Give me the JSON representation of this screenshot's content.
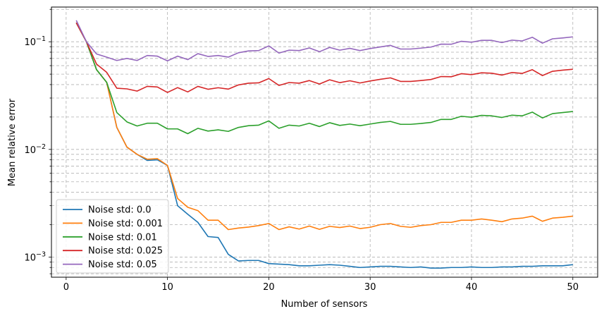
{
  "chart_data": {
    "type": "line",
    "title": "",
    "xlabel": "Number of sensors",
    "ylabel": "Mean relative error",
    "yscale": "log",
    "xlim": [
      -1.45,
      52.45
    ],
    "ylim": [
      0.00065,
      0.21
    ],
    "grid": true,
    "legend_position": "lower-left",
    "x_ticks": [
      0,
      10,
      20,
      30,
      40,
      50
    ],
    "x_tick_labels": [
      "0",
      "10",
      "20",
      "30",
      "40",
      "50"
    ],
    "y_ticks": [
      0.001,
      0.01,
      0.1
    ],
    "y_tick_labels": [
      "10^-3",
      "10^-2",
      "10^-1"
    ],
    "x": [
      1,
      2,
      3,
      4,
      5,
      6,
      7,
      8,
      9,
      10,
      11,
      12,
      13,
      14,
      15,
      16,
      17,
      18,
      19,
      20,
      21,
      22,
      23,
      24,
      25,
      26,
      27,
      28,
      29,
      30,
      31,
      32,
      33,
      34,
      35,
      36,
      37,
      38,
      39,
      40,
      41,
      42,
      43,
      44,
      45,
      46,
      47,
      48,
      49,
      50
    ],
    "series": [
      {
        "name": "Noise std: 0.0",
        "color": "#1f77b4",
        "values": [
          0.15,
          0.1,
          0.055,
          0.042,
          0.016,
          0.0105,
          0.009,
          0.0079,
          0.008,
          0.0071,
          0.003,
          0.0025,
          0.0021,
          0.00155,
          0.00152,
          0.00106,
          0.00092,
          0.00093,
          0.00093,
          0.00087,
          0.00086,
          0.00085,
          0.00083,
          0.00083,
          0.00084,
          0.00085,
          0.00084,
          0.00082,
          0.0008,
          0.00081,
          0.00082,
          0.00082,
          0.00081,
          0.0008,
          0.00081,
          0.00079,
          0.00079,
          0.0008,
          0.0008,
          0.00081,
          0.0008,
          0.0008,
          0.00081,
          0.00081,
          0.00082,
          0.00082,
          0.00083,
          0.00083,
          0.00083,
          0.00085
        ]
      },
      {
        "name": "Noise std: 0.001",
        "color": "#ff7f0e",
        "values": [
          0.15,
          0.1,
          0.055,
          0.042,
          0.016,
          0.0105,
          0.009,
          0.0081,
          0.0082,
          0.0071,
          0.0035,
          0.0029,
          0.0027,
          0.0022,
          0.0022,
          0.0018,
          0.00186,
          0.0019,
          0.00196,
          0.00205,
          0.0018,
          0.00191,
          0.00182,
          0.00194,
          0.00181,
          0.00193,
          0.00188,
          0.00194,
          0.00184,
          0.00189,
          0.002,
          0.00205,
          0.00193,
          0.00189,
          0.00196,
          0.002,
          0.0021,
          0.0021,
          0.0022,
          0.0022,
          0.00226,
          0.0022,
          0.00213,
          0.00226,
          0.0023,
          0.0024,
          0.00215,
          0.0023,
          0.00234,
          0.0024
        ]
      },
      {
        "name": "Noise std: 0.01",
        "color": "#2ca02c",
        "values": [
          0.15,
          0.1,
          0.055,
          0.042,
          0.022,
          0.018,
          0.0165,
          0.0175,
          0.0175,
          0.0155,
          0.0155,
          0.014,
          0.0157,
          0.0148,
          0.0152,
          0.0147,
          0.016,
          0.0166,
          0.0168,
          0.0184,
          0.0157,
          0.0168,
          0.0165,
          0.0175,
          0.0163,
          0.0177,
          0.0167,
          0.0172,
          0.0166,
          0.0172,
          0.0178,
          0.0182,
          0.0171,
          0.0171,
          0.0174,
          0.0178,
          0.019,
          0.019,
          0.0203,
          0.0199,
          0.0207,
          0.0205,
          0.0198,
          0.0208,
          0.0205,
          0.0222,
          0.0196,
          0.0215,
          0.022,
          0.0225
        ]
      },
      {
        "name": "Noise std: 0.025",
        "color": "#d62728",
        "values": [
          0.15,
          0.1,
          0.062,
          0.052,
          0.037,
          0.0365,
          0.0348,
          0.0385,
          0.038,
          0.0338,
          0.0375,
          0.0342,
          0.0385,
          0.0362,
          0.0374,
          0.0363,
          0.0397,
          0.0412,
          0.0415,
          0.0455,
          0.0393,
          0.0418,
          0.0412,
          0.0436,
          0.0405,
          0.0443,
          0.0417,
          0.0434,
          0.0414,
          0.0432,
          0.0448,
          0.0462,
          0.0428,
          0.0428,
          0.0436,
          0.0446,
          0.0475,
          0.0473,
          0.0505,
          0.0495,
          0.0515,
          0.051,
          0.049,
          0.0518,
          0.0508,
          0.055,
          0.0485,
          0.0532,
          0.0545,
          0.0555
        ]
      },
      {
        "name": "Noise std: 0.05",
        "color": "#9467bd",
        "values": [
          0.158,
          0.1,
          0.077,
          0.072,
          0.067,
          0.07,
          0.067,
          0.0745,
          0.0735,
          0.0665,
          0.0735,
          0.0682,
          0.0775,
          0.073,
          0.0745,
          0.072,
          0.079,
          0.0822,
          0.0828,
          0.0915,
          0.0785,
          0.0835,
          0.0828,
          0.0875,
          0.0808,
          0.0885,
          0.0835,
          0.0868,
          0.0828,
          0.0865,
          0.0895,
          0.0925,
          0.0856,
          0.0856,
          0.0872,
          0.0892,
          0.095,
          0.0948,
          0.101,
          0.099,
          0.103,
          0.103,
          0.0982,
          0.1035,
          0.1018,
          0.11,
          0.097,
          0.1065,
          0.1085,
          0.111
        ]
      }
    ]
  }
}
